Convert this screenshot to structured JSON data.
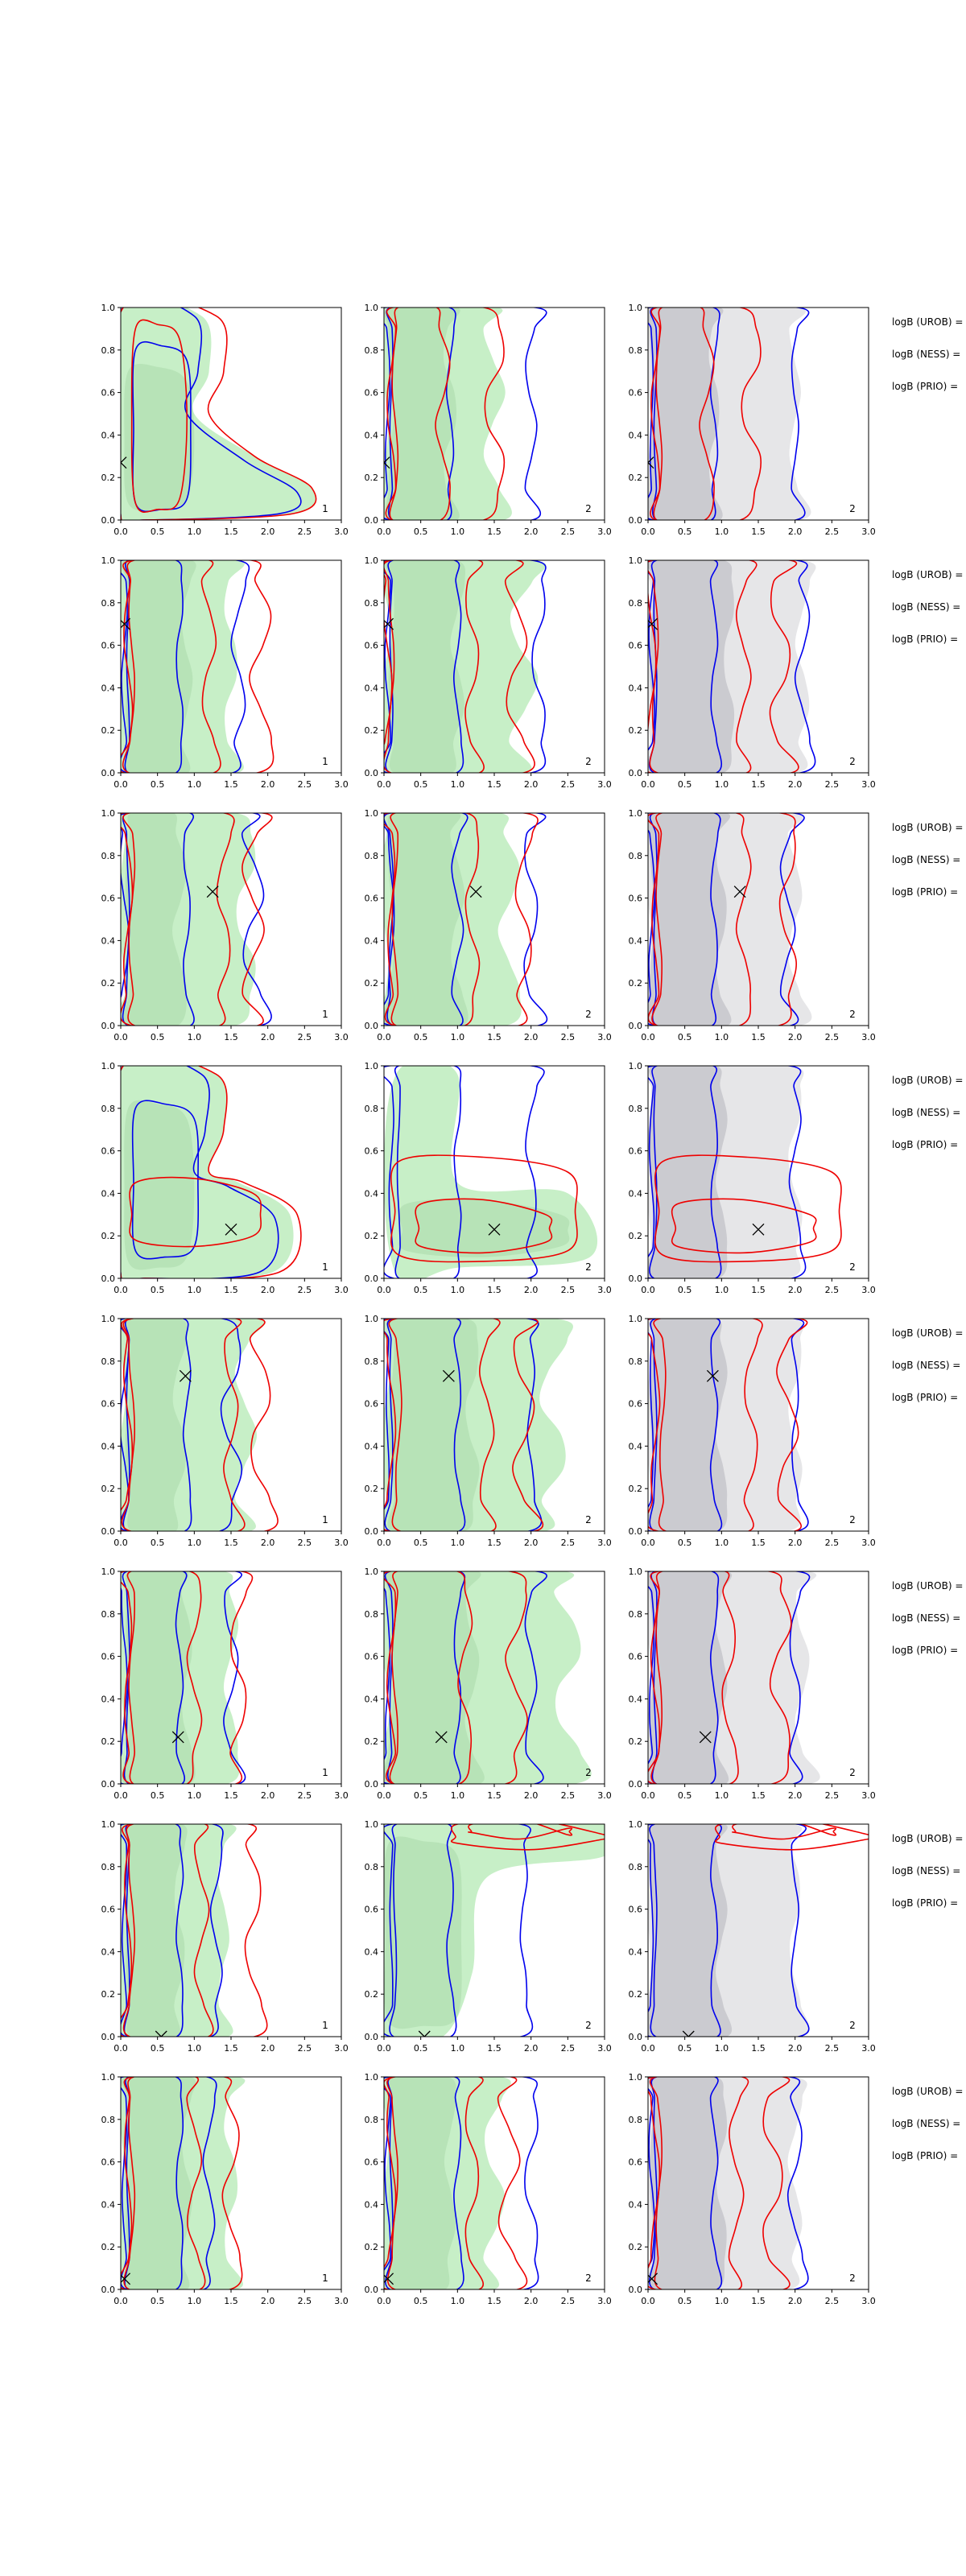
{
  "figure": {
    "axis_x_range": [
      0,
      3
    ],
    "axis_y_range": [
      0,
      1
    ],
    "x_ticks": [
      "0.0",
      "0.5",
      "1.0",
      "1.5",
      "2.0",
      "2.5",
      "3.0"
    ],
    "y_ticks": [
      "0.0",
      "0.2",
      "0.4",
      "0.6",
      "0.8",
      "1.0"
    ],
    "annotation_labels": [
      "logB (UROB) =",
      "logB (NESS) =",
      "logB (PRIO) ="
    ],
    "panel_indices": [
      "1",
      "2",
      "2"
    ],
    "colors": {
      "green_fill": "#90e090",
      "grey_fill": "#c8c8cc",
      "blue_line": "#0000ee",
      "red_line": "#ee0000",
      "marker": "#000000"
    },
    "markers": [
      {
        "x": 0.0,
        "y": 0.27
      },
      {
        "x": 0.05,
        "y": 0.7
      },
      {
        "x": 1.25,
        "y": 0.63
      },
      {
        "x": 1.5,
        "y": 0.23
      },
      {
        "x": 0.88,
        "y": 0.73
      },
      {
        "x": 0.78,
        "y": 0.22
      },
      {
        "x": 0.55,
        "y": 0.0
      },
      {
        "x": 0.05,
        "y": 0.05
      }
    ]
  },
  "chart_data": {
    "type": "contour",
    "layout": "8 rows x 3 columns of 2D credible-region contour panels",
    "xlim": [
      0,
      3
    ],
    "ylim": [
      0,
      1
    ],
    "grid": false,
    "legend": "none",
    "series_colors": [
      "green filled",
      "grey filled",
      "blue line",
      "red line"
    ]
  }
}
